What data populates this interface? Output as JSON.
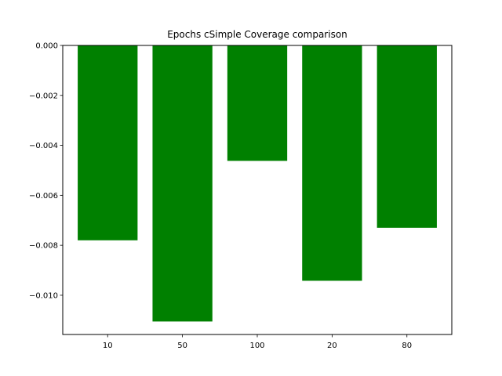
{
  "chart_data": {
    "type": "bar",
    "title": "Epochs cSimple Coverage comparison",
    "xlabel": "",
    "ylabel": "",
    "categories": [
      "10",
      "50",
      "100",
      "20",
      "80"
    ],
    "values": [
      -0.0078,
      -0.01105,
      -0.00462,
      -0.00942,
      -0.0073
    ],
    "ylim": [
      -0.01157,
      0.0
    ],
    "yticks": [
      0.0,
      -0.002,
      -0.004,
      -0.006,
      -0.008,
      -0.01
    ],
    "ytick_labels": [
      "0.000",
      "−0.002",
      "−0.004",
      "−0.006",
      "−0.008",
      "−0.010"
    ],
    "bar_color": "#008000",
    "grid": false,
    "legend": "none"
  }
}
